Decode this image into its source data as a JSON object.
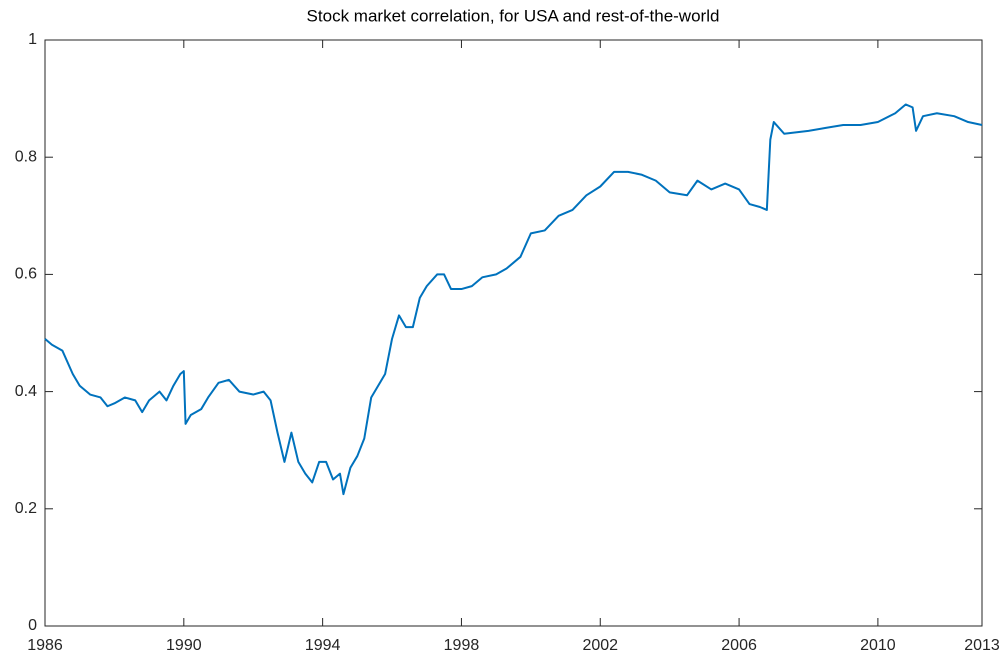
{
  "chart_data": {
    "type": "line",
    "title": "Stock market correlation, for USA and rest-of-the-world",
    "xlim": [
      1986,
      2013
    ],
    "xticks": [
      1986,
      1990,
      1994,
      1998,
      2002,
      2006,
      2010,
      2013
    ],
    "ylim": [
      0,
      1
    ],
    "yticks": [
      0,
      0.2,
      0.4,
      0.6,
      0.8,
      1
    ],
    "grid": false,
    "series": [
      {
        "color": "#0072bd",
        "x": [
          1986.0,
          1986.2,
          1986.5,
          1986.8,
          1987.0,
          1987.3,
          1987.6,
          1987.8,
          1988.0,
          1988.3,
          1988.6,
          1988.8,
          1989.0,
          1989.3,
          1989.5,
          1989.7,
          1989.9,
          1990.0,
          1990.05,
          1990.2,
          1990.5,
          1990.7,
          1991.0,
          1991.3,
          1991.6,
          1992.0,
          1992.3,
          1992.5,
          1992.7,
          1992.9,
          1993.1,
          1993.3,
          1993.5,
          1993.7,
          1993.9,
          1994.1,
          1994.3,
          1994.5,
          1994.6,
          1994.8,
          1995.0,
          1995.2,
          1995.4,
          1995.6,
          1995.8,
          1996.0,
          1996.2,
          1996.4,
          1996.6,
          1996.8,
          1997.0,
          1997.3,
          1997.5,
          1997.7,
          1998.0,
          1998.3,
          1998.6,
          1999.0,
          1999.3,
          1999.7,
          2000.0,
          2000.4,
          2000.8,
          2001.2,
          2001.6,
          2002.0,
          2002.4,
          2002.8,
          2003.2,
          2003.6,
          2004.0,
          2004.5,
          2004.8,
          2005.2,
          2005.6,
          2006.0,
          2006.3,
          2006.6,
          2006.8,
          2006.9,
          2007.0,
          2007.3,
          2008.0,
          2008.5,
          2009.0,
          2009.5,
          2010.0,
          2010.5,
          2010.8,
          2011.0,
          2011.1,
          2011.3,
          2011.7,
          2012.2,
          2012.6,
          2013.0
        ],
        "values": [
          0.49,
          0.48,
          0.47,
          0.43,
          0.41,
          0.395,
          0.39,
          0.375,
          0.38,
          0.39,
          0.385,
          0.365,
          0.385,
          0.4,
          0.385,
          0.41,
          0.43,
          0.435,
          0.345,
          0.36,
          0.37,
          0.39,
          0.415,
          0.42,
          0.4,
          0.395,
          0.4,
          0.385,
          0.33,
          0.28,
          0.33,
          0.28,
          0.26,
          0.245,
          0.28,
          0.28,
          0.25,
          0.26,
          0.225,
          0.27,
          0.29,
          0.32,
          0.39,
          0.41,
          0.43,
          0.49,
          0.53,
          0.51,
          0.51,
          0.56,
          0.58,
          0.6,
          0.6,
          0.575,
          0.575,
          0.58,
          0.595,
          0.6,
          0.61,
          0.63,
          0.67,
          0.675,
          0.7,
          0.71,
          0.735,
          0.75,
          0.775,
          0.775,
          0.77,
          0.76,
          0.74,
          0.735,
          0.76,
          0.745,
          0.755,
          0.745,
          0.72,
          0.715,
          0.71,
          0.83,
          0.86,
          0.84,
          0.845,
          0.85,
          0.855,
          0.855,
          0.86,
          0.875,
          0.89,
          0.885,
          0.845,
          0.87,
          0.875,
          0.87,
          0.86,
          0.855
        ]
      }
    ]
  }
}
